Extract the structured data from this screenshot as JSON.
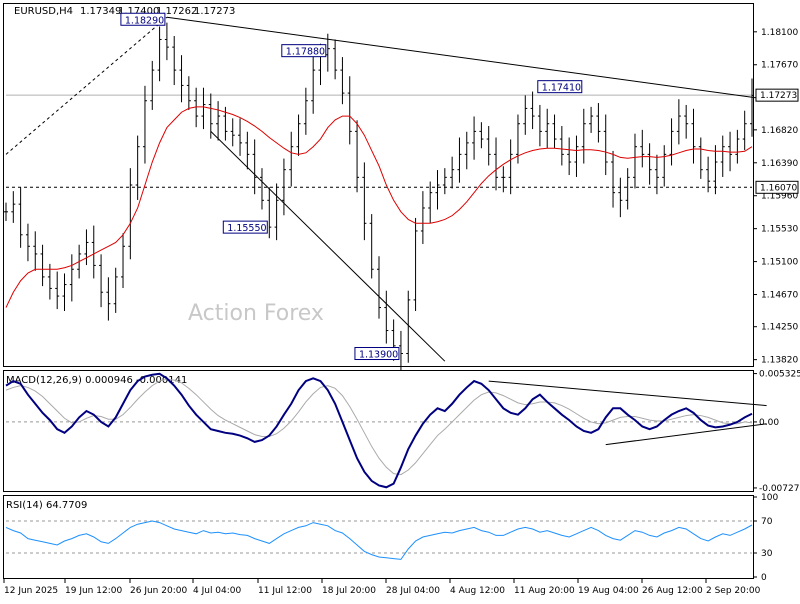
{
  "header": {
    "symbol": "EURUSD,H4",
    "open": "1.17349",
    "high": "1.17400",
    "low": "1.17262",
    "close": "1.17273"
  },
  "watermark": "Action Forex",
  "colors": {
    "price": "#000000",
    "ma": "#dd0000",
    "macd_main": "#000080",
    "macd_signal": "#aaaaaa",
    "rsi": "#1e90ff",
    "box": "#000080",
    "watermark": "#c8c8c8"
  },
  "chart_data": [
    {
      "type": "candlestick",
      "panel": "main",
      "series": [
        {
          "name": "",
          "kind": "bars",
          "values": [
            1.1575,
            1.1585,
            1.1545,
            1.153,
            1.152,
            1.149,
            1.1475,
            1.1465,
            1.148,
            1.15,
            1.152,
            1.1535,
            1.1505,
            1.147,
            1.1455,
            1.149,
            1.153,
            1.161,
            1.166,
            1.172,
            1.176,
            1.18,
            1.179,
            1.176,
            1.174,
            1.172,
            1.17,
            1.1715,
            1.169,
            1.17,
            1.168,
            1.1675,
            1.1665,
            1.165,
            1.162,
            1.159,
            1.1555,
            1.159,
            1.163,
            1.166,
            1.169,
            1.172,
            1.176,
            1.178,
            1.1788,
            1.176,
            1.173,
            1.168,
            1.162,
            1.156,
            1.15,
            1.145,
            1.142,
            1.14,
            1.139,
            1.146,
            1.155,
            1.158,
            1.16,
            1.161,
            1.162,
            1.163,
            1.165,
            1.1665,
            1.168,
            1.167,
            1.165,
            1.162,
            1.162,
            1.165,
            1.169,
            1.171,
            1.17,
            1.168,
            1.169,
            1.167,
            1.165,
            1.164,
            1.166,
            1.169,
            1.17,
            1.168,
            1.164,
            1.16,
            1.159,
            1.162,
            1.166,
            1.165,
            1.163,
            1.162,
            1.165,
            1.168,
            1.17,
            1.169,
            1.166,
            1.163,
            1.1615,
            1.164,
            1.166,
            1.165,
            1.167,
            1.169,
            1.1727
          ]
        },
        {
          "name": "",
          "kind": "moving-average",
          "values": [
            1.145,
            1.147,
            1.1485,
            1.1495,
            1.15,
            1.15,
            1.15,
            1.15,
            1.1502,
            1.1505,
            1.151,
            1.1515,
            1.152,
            1.1525,
            1.153,
            1.1535,
            1.1545,
            1.156,
            1.158,
            1.161,
            1.164,
            1.1665,
            1.1685,
            1.1695,
            1.1705,
            1.171,
            1.1712,
            1.1712,
            1.171,
            1.1708,
            1.1705,
            1.1702,
            1.1698,
            1.1693,
            1.1687,
            1.168,
            1.1672,
            1.1665,
            1.1658,
            1.1652,
            1.165,
            1.1652,
            1.166,
            1.167,
            1.1685,
            1.1695,
            1.17,
            1.17,
            1.169,
            1.1675,
            1.1655,
            1.1635,
            1.161,
            1.159,
            1.1575,
            1.1565,
            1.156,
            1.156,
            1.156,
            1.1562,
            1.1565,
            1.157,
            1.1578,
            1.1588,
            1.16,
            1.1612,
            1.1622,
            1.163,
            1.1637,
            1.1643,
            1.1648,
            1.1652,
            1.1655,
            1.1657,
            1.1658,
            1.1658,
            1.1657,
            1.1656,
            1.1655,
            1.1656,
            1.1656,
            1.1655,
            1.1653,
            1.165,
            1.1646,
            1.1645,
            1.1646,
            1.1647,
            1.1647,
            1.1646,
            1.1647,
            1.1649,
            1.1652,
            1.1655,
            1.1657,
            1.1657,
            1.1655,
            1.1654,
            1.1654,
            1.1653,
            1.1653,
            1.1654,
            1.166
          ]
        }
      ],
      "x_tick_labels": [
        "12 Jun 2025",
        "19 Jun 12:00",
        "26 Jun 20:00",
        "4 Jul 04:00",
        "11 Jul 12:00",
        "18 Jul 20:00",
        "28 Jul 04:00",
        "4 Aug 12:00",
        "11 Aug 20:00",
        "19 Aug 04:00",
        "26 Aug 12:00",
        "2 Sep 20:00"
      ],
      "y_ticks": [
        "1.18100",
        "1.17670",
        "1.16820",
        "1.16390",
        "1.15960",
        "1.15530",
        "1.15100",
        "1.14670",
        "1.14250",
        "1.13820"
      ],
      "ylim": [
        1.1375,
        1.1845
      ],
      "current_price": "1.17273",
      "level_line": "1.16070",
      "level_label": "1.16070",
      "annotations": [
        {
          "label": "1.18290",
          "value": 1.1829,
          "bar": 22
        },
        {
          "label": "1.17880",
          "value": 1.1788,
          "bar": 44
        },
        {
          "label": "1.17410",
          "value": 1.1741,
          "bar": 79
        },
        {
          "label": "1.15550",
          "value": 1.1555,
          "bar": 36
        },
        {
          "label": "1.13900",
          "value": 1.139,
          "bar": 54
        }
      ],
      "trendlines": [
        {
          "from": {
            "bar": 22,
            "value": 1.1829
          },
          "to": {
            "bar": 104,
            "value": 1.1722
          },
          "style": "solid"
        },
        {
          "from": {
            "bar": 0,
            "value": 1.165
          },
          "to": {
            "bar": 22,
            "value": 1.1829
          },
          "style": "dashed"
        },
        {
          "from": {
            "bar": 28,
            "value": 1.168
          },
          "to": {
            "bar": 60,
            "value": 1.138
          },
          "style": "solid"
        }
      ],
      "grid": false
    },
    {
      "type": "line",
      "panel": "macd",
      "title": "MACD(12,26,9) 0.000946 -0.000141",
      "series": [
        {
          "name": "",
          "kind": "main",
          "values": [
            0.004,
            0.0045,
            0.0042,
            0.003,
            0.002,
            0.001,
            0.0002,
            -0.0008,
            -0.0012,
            -0.0005,
            0.0005,
            0.0012,
            0.0008,
            0.0,
            -0.0005,
            0.0005,
            0.002,
            0.0035,
            0.0045,
            0.005,
            0.0052,
            0.0053,
            0.0048,
            0.004,
            0.003,
            0.0018,
            0.0008,
            0.0,
            -0.0008,
            -0.001,
            -0.0012,
            -0.0013,
            -0.0015,
            -0.0018,
            -0.0022,
            -0.002,
            -0.0015,
            -0.0005,
            0.0008,
            0.002,
            0.0035,
            0.0045,
            0.0048,
            0.0045,
            0.0035,
            0.002,
            0.0,
            -0.002,
            -0.004,
            -0.0055,
            -0.0065,
            -0.007,
            -0.0072,
            -0.0068,
            -0.005,
            -0.003,
            -0.0015,
            -0.0002,
            0.0008,
            0.0015,
            0.0012,
            0.002,
            0.003,
            0.0038,
            0.0045,
            0.0042,
            0.0035,
            0.0025,
            0.0015,
            0.001,
            0.0008,
            0.0015,
            0.0025,
            0.003,
            0.0022,
            0.0015,
            0.0008,
            0.0002,
            -0.0005,
            -0.001,
            -0.0012,
            -0.0008,
            0.0005,
            0.0015,
            0.0015,
            0.0008,
            0.0002,
            -0.0005,
            -0.0008,
            -0.0005,
            0.0002,
            0.0008,
            0.0012,
            0.0015,
            0.001,
            0.0002,
            -0.0004,
            -0.0006,
            -0.0005,
            -0.0003,
            0.0,
            0.0005,
            0.0009
          ]
        },
        {
          "name": "",
          "kind": "signal",
          "values": [
            0.0035,
            0.0038,
            0.004,
            0.0038,
            0.0034,
            0.0028,
            0.002,
            0.0012,
            0.0004,
            -0.0001,
            0.0,
            0.0004,
            0.0007,
            0.0006,
            0.0003,
            0.0003,
            0.0008,
            0.0016,
            0.0025,
            0.0033,
            0.004,
            0.0045,
            0.0047,
            0.0046,
            0.0043,
            0.0037,
            0.003,
            0.0022,
            0.0014,
            0.0007,
            0.0002,
            -0.0002,
            -0.0006,
            -0.001,
            -0.0014,
            -0.0016,
            -0.0016,
            -0.0013,
            -0.0007,
            0.0001,
            0.0011,
            0.0022,
            0.0031,
            0.0038,
            0.004,
            0.0037,
            0.0029,
            0.0017,
            0.0003,
            -0.0012,
            -0.0027,
            -0.004,
            -0.005,
            -0.0057,
            -0.0058,
            -0.0053,
            -0.0045,
            -0.0035,
            -0.0025,
            -0.0015,
            -0.0008,
            0.0,
            0.0008,
            0.0016,
            0.0024,
            0.003,
            0.0033,
            0.0032,
            0.0029,
            0.0025,
            0.0021,
            0.0019,
            0.002,
            0.0022,
            0.0022,
            0.0021,
            0.0018,
            0.0014,
            0.0009,
            0.0004,
            0.0,
            -0.0002,
            -0.0001,
            0.0002,
            0.0005,
            0.0006,
            0.0006,
            0.0004,
            0.0002,
            0.0001,
            0.0001,
            0.0003,
            0.0005,
            0.0007,
            0.0008,
            0.0007,
            0.0005,
            0.0002,
            -0.0001,
            -0.0002,
            -0.0002,
            0.0,
            -0.0001
          ]
        }
      ],
      "y_ticks": [
        "0.005325",
        "0.00",
        "-0.007273"
      ],
      "ylim": [
        -0.0075,
        0.0055
      ],
      "trendlines": [
        {
          "from": {
            "bar": 66,
            "value": 0.0045
          },
          "to": {
            "bar": 104,
            "value": 0.0018
          }
        },
        {
          "from": {
            "bar": 82,
            "value": -0.0025
          },
          "to": {
            "bar": 104,
            "value": -0.0002
          }
        }
      ]
    },
    {
      "type": "line",
      "panel": "rsi",
      "title": "RSI(14) 64.7709",
      "series": [
        {
          "name": "",
          "kind": "rsi",
          "values": [
            62,
            58,
            55,
            48,
            46,
            44,
            42,
            40,
            45,
            48,
            52,
            54,
            50,
            44,
            42,
            48,
            55,
            62,
            66,
            68,
            70,
            68,
            64,
            60,
            58,
            56,
            54,
            58,
            55,
            56,
            54,
            55,
            53,
            52,
            48,
            45,
            42,
            48,
            54,
            58,
            62,
            64,
            68,
            66,
            64,
            58,
            55,
            48,
            40,
            32,
            28,
            25,
            24,
            23,
            22,
            35,
            45,
            50,
            52,
            54,
            56,
            55,
            58,
            60,
            62,
            58,
            56,
            52,
            52,
            56,
            60,
            62,
            60,
            56,
            58,
            55,
            52,
            50,
            54,
            58,
            62,
            58,
            52,
            48,
            46,
            52,
            58,
            56,
            52,
            50,
            55,
            58,
            62,
            60,
            54,
            48,
            45,
            50,
            54,
            52,
            56,
            60,
            65
          ]
        }
      ],
      "y_ticks": [
        "100",
        "70",
        "30",
        "0"
      ],
      "levels": [
        70,
        30
      ],
      "ylim": [
        0,
        100
      ]
    }
  ]
}
